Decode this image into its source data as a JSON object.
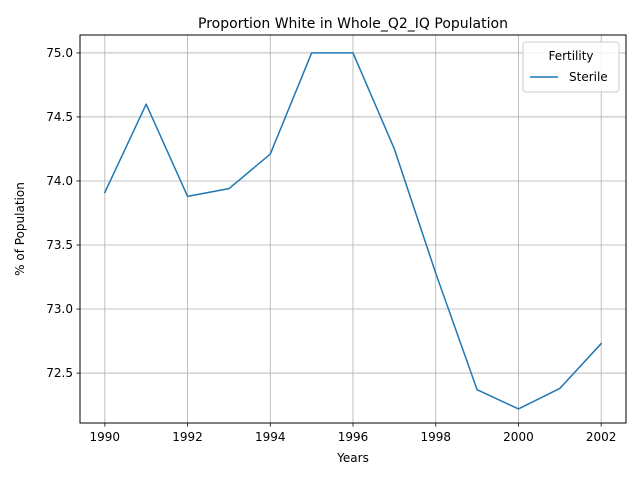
{
  "chart_data": {
    "type": "line",
    "title": "Proportion White in Whole_Q2_IQ Population",
    "xlabel": "Years",
    "ylabel": "% of Population",
    "x": [
      1990,
      1991,
      1992,
      1993,
      1994,
      1995,
      1996,
      1997,
      1998,
      1999,
      2000,
      2001,
      2002
    ],
    "series": [
      {
        "name": "Sterile",
        "color": "#1f77b4",
        "values": [
          73.91,
          74.6,
          73.88,
          73.94,
          74.21,
          75.0,
          75.0,
          74.25,
          73.28,
          72.37,
          72.22,
          72.38,
          72.73
        ]
      }
    ],
    "xlim": [
      1989.4,
      2002.6
    ],
    "ylim": [
      72.11,
      75.14
    ],
    "xticks": [
      "1990",
      "1992",
      "1994",
      "1996",
      "1998",
      "2000",
      "2002"
    ],
    "yticks": [
      "72.5",
      "73.0",
      "73.5",
      "74.0",
      "74.5",
      "75.0"
    ],
    "grid": true,
    "legend": {
      "title": "Fertility",
      "placement": "top-right"
    }
  }
}
